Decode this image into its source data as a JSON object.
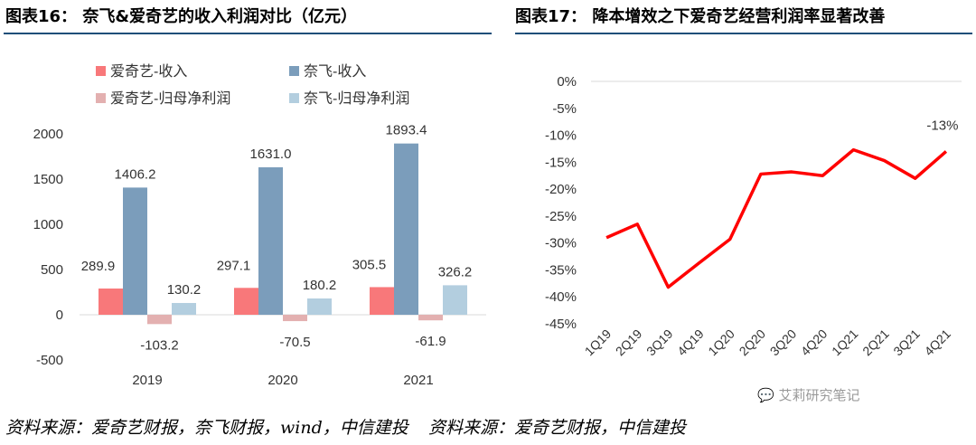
{
  "left_title": "图表16：  奈飞&爱奇艺的收入利润对比（亿元）",
  "right_title": "图表17：  降本增效之下爱奇艺经营利润率显著改善",
  "left_source": "资料来源：爱奇艺财报，奈飞财报，wind，中信建投",
  "right_source": "资料来源：爱奇艺财报，中信建投",
  "watermark": "艾莉研究笔记",
  "colors": {
    "iqiyi_revenue": "#f8787a",
    "netflix_revenue": "#7b9dbb",
    "iqiyi_profit": "#e3b0b0",
    "netflix_profit": "#b3cedf",
    "line": "#ff0000",
    "rule": "#1f4e79"
  },
  "chart_data": [
    {
      "type": "bar",
      "title": "奈飞&爱奇艺的收入利润对比（亿元）",
      "categories": [
        "2019",
        "2020",
        "2021"
      ],
      "series": [
        {
          "name": "爱奇艺-收入",
          "values": [
            289.9,
            297.1,
            305.5
          ],
          "labels": [
            "289.9",
            "297.1",
            "305.5"
          ]
        },
        {
          "name": "奈飞-收入",
          "values": [
            1406.2,
            1631.0,
            1893.4
          ],
          "labels": [
            "1406.2",
            "1631.0",
            "1893.4"
          ]
        },
        {
          "name": "爱奇艺-归母净利润",
          "values": [
            -103.2,
            -70.5,
            -61.9
          ],
          "labels": [
            "-103.2",
            "-70.5",
            "-61.9"
          ]
        },
        {
          "name": "奈飞-归母净利润",
          "values": [
            130.2,
            180.2,
            326.2
          ],
          "labels": [
            "130.2",
            "180.2",
            "326.2"
          ]
        }
      ],
      "ylim": [
        -500,
        2000
      ],
      "yticks": [
        -500,
        0,
        500,
        1000,
        1500,
        2000
      ],
      "ytick_labels": [
        "-500",
        "0",
        "500",
        "1000",
        "1500",
        "2000"
      ],
      "legend_position": "top"
    },
    {
      "type": "line",
      "title": "降本增效之下爱奇艺经营利润率显著改善",
      "x": [
        "1Q19",
        "2Q19",
        "3Q19",
        "4Q19",
        "1Q20",
        "2Q20",
        "3Q20",
        "4Q20",
        "1Q21",
        "2Q21",
        "3Q21",
        "4Q21"
      ],
      "values": [
        -29.0,
        -26.5,
        -38.2,
        -33.7,
        -29.3,
        -17.2,
        -16.8,
        -17.5,
        -12.7,
        -14.7,
        -18.0,
        -13.0
      ],
      "ylim": [
        -45,
        0
      ],
      "yticks": [
        0,
        -5,
        -10,
        -15,
        -20,
        -25,
        -30,
        -35,
        -40,
        -45
      ],
      "ytick_labels": [
        "0%",
        "-5%",
        "-10%",
        "-15%",
        "-20%",
        "-25%",
        "-30%",
        "-35%",
        "-40%",
        "-45%"
      ],
      "annotation": "-13%"
    }
  ]
}
